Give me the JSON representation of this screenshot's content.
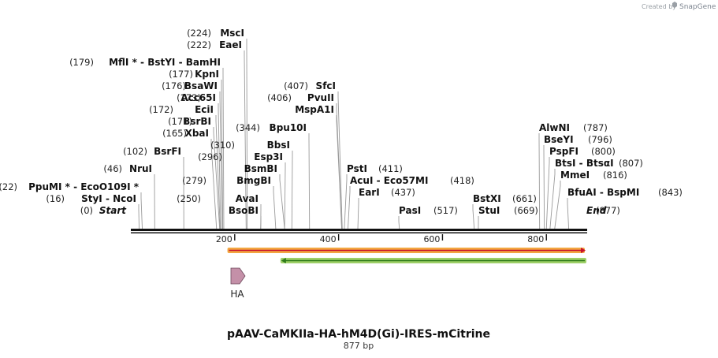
{
  "credit": {
    "prefix": "Created by",
    "brand": "SnapGene"
  },
  "title": "pAAV-CaMKIIa-HA-hM4D(Gi)-IRES-mCitrine",
  "subtitle": "877 bp",
  "sequence_length": 877,
  "ruler_ticks": [
    "200",
    "400",
    "600",
    "800"
  ],
  "ruler_tick_values": [
    200,
    400,
    600,
    800
  ],
  "sites": [
    {
      "pos": "(224)",
      "names": [
        "MscI"
      ],
      "bp": 224
    },
    {
      "pos": "(222)",
      "names": [
        "EaeI"
      ],
      "bp": 222
    },
    {
      "pos": "(179)",
      "names": [
        "MflI *",
        "BstYI",
        "BamHI"
      ],
      "bp": 179
    },
    {
      "pos": "(177)",
      "names": [
        "KpnI"
      ],
      "bp": 177
    },
    {
      "pos": "(176)",
      "names": [
        "BsaWI"
      ],
      "bp": 176
    },
    {
      "pos": "(173)",
      "names": [
        "Acc65I"
      ],
      "bp": 173
    },
    {
      "pos": "(172)",
      "names": [
        "EciI"
      ],
      "bp": 172
    },
    {
      "pos": "(171)",
      "names": [
        "BsrBI"
      ],
      "bp": 171
    },
    {
      "pos": "(165)",
      "names": [
        "XbaI"
      ],
      "bp": 165
    },
    {
      "pos": "(102)",
      "names": [
        "BsrFI"
      ],
      "bp": 102
    },
    {
      "pos": "(46)",
      "names": [
        "NruI"
      ],
      "bp": 46
    },
    {
      "pos": "(22)",
      "names": [
        "PpuMI *",
        "EcoO109I *"
      ],
      "bp": 22
    },
    {
      "pos": "(16)",
      "names": [
        "StyI",
        "NcoI"
      ],
      "bp": 16
    },
    {
      "pos": "(0)",
      "names": [
        "Start"
      ],
      "bp": 0,
      "italic": true
    },
    {
      "pos": "(407)",
      "names": [
        "SfcI"
      ],
      "bp": 407
    },
    {
      "pos": "(406)",
      "names": [
        "PvuII"
      ],
      "bp": 406
    },
    {
      "pos": "",
      "names": [
        "MspA1I"
      ],
      "bp": 406
    },
    {
      "pos": "(344)",
      "names": [
        "Bpu10I"
      ],
      "bp": 344
    },
    {
      "pos": "(310)",
      "names": [
        "BbsI"
      ],
      "bp": 310
    },
    {
      "pos": "(296)",
      "names": [
        "Esp3I"
      ],
      "bp": 296
    },
    {
      "pos": "",
      "names": [
        "BsmBI"
      ],
      "bp": 296
    },
    {
      "pos": "(279)",
      "names": [
        "BmgBI"
      ],
      "bp": 279
    },
    {
      "pos": "(250)",
      "names": [
        "AvaI"
      ],
      "bp": 250
    },
    {
      "pos": "",
      "names": [
        "BsoBI"
      ],
      "bp": 250
    },
    {
      "pos": "(411)",
      "names": [
        "PstI"
      ],
      "bp": 411
    },
    {
      "pos": "(418)",
      "names": [
        "AcuI",
        "Eco57MI"
      ],
      "bp": 418
    },
    {
      "pos": "(437)",
      "names": [
        "EarI"
      ],
      "bp": 437
    },
    {
      "pos": "(517)",
      "names": [
        "PasI"
      ],
      "bp": 517
    },
    {
      "pos": "(661)",
      "names": [
        "BstXI"
      ],
      "bp": 661
    },
    {
      "pos": "(669)",
      "names": [
        "StuI"
      ],
      "bp": 669
    },
    {
      "pos": "(787)",
      "names": [
        "AlwNI"
      ],
      "bp": 787
    },
    {
      "pos": "(796)",
      "names": [
        "BseYI"
      ],
      "bp": 796
    },
    {
      "pos": "(800)",
      "names": [
        "PspFI"
      ],
      "bp": 800
    },
    {
      "pos": "(807)",
      "names": [
        "BtsI",
        "BtsαI"
      ],
      "bp": 807
    },
    {
      "pos": "(816)",
      "names": [
        "MmeI"
      ],
      "bp": 816
    },
    {
      "pos": "(843)",
      "names": [
        "BfuAI",
        "BspMI"
      ],
      "bp": 843
    },
    {
      "pos": "(877)",
      "names": [
        "End"
      ],
      "bp": 877,
      "italic": true
    }
  ],
  "features": [
    {
      "name": "",
      "start": 189,
      "end": 877,
      "direction": "forward",
      "color": "#f2a640",
      "core": "#c8102e"
    },
    {
      "name": "",
      "start": 285,
      "end": 877,
      "direction": "reverse",
      "color": "#9ed068",
      "core": "#2d7a1a"
    },
    {
      "name": "HA",
      "start": 190,
      "end": 217,
      "direction": "forward",
      "color": "#c490a8"
    }
  ]
}
